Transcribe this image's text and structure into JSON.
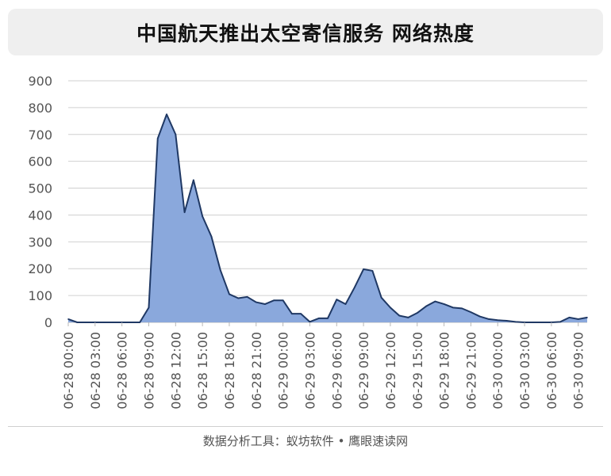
{
  "title": "中国航天推出太空寄信服务 网络热度",
  "footer": "数据分析工具：蚁坊软件 • 鹰眼速读网",
  "colors": {
    "fill": "#8aa8dc",
    "stroke": "#1f3864",
    "grid": "#d0d0d0",
    "text": "#555555"
  },
  "chart_data": {
    "type": "area",
    "title": "中国航天推出太空寄信服务 网络热度",
    "xlabel": "",
    "ylabel": "",
    "ylim": [
      0,
      900
    ],
    "yticks": [
      0,
      100,
      200,
      300,
      400,
      500,
      600,
      700,
      800,
      900
    ],
    "grid": true,
    "x_tick_labels": [
      "06-28 00:00",
      "06-28 03:00",
      "06-28 06:00",
      "06-28 09:00",
      "06-28 12:00",
      "06-28 15:00",
      "06-28 18:00",
      "06-28 21:00",
      "06-29 00:00",
      "06-29 03:00",
      "06-29 06:00",
      "06-29 09:00",
      "06-29 12:00",
      "06-29 15:00",
      "06-29 18:00",
      "06-29 21:00",
      "06-30 00:00",
      "06-30 03:00",
      "06-30 06:00",
      "06-30 09:00"
    ],
    "x_start": "06-28 00:00",
    "x_step_hours": 1,
    "values": [
      12,
      0,
      0,
      0,
      0,
      0,
      0,
      0,
      0,
      55,
      685,
      775,
      700,
      410,
      530,
      395,
      320,
      195,
      105,
      90,
      95,
      75,
      68,
      82,
      82,
      32,
      32,
      2,
      15,
      15,
      85,
      68,
      130,
      198,
      192,
      92,
      55,
      25,
      18,
      35,
      60,
      78,
      68,
      55,
      52,
      38,
      22,
      12,
      8,
      6,
      2,
      0,
      0,
      0,
      0,
      2,
      18,
      12,
      18
    ]
  }
}
